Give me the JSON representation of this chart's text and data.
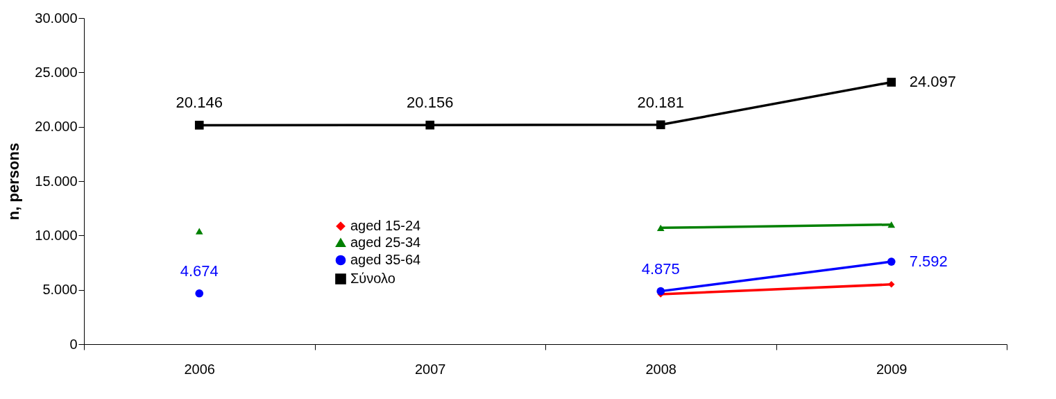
{
  "chart_data": {
    "type": "line",
    "ylabel": "n, persons",
    "categories": [
      "2006",
      "2007",
      "2008",
      "2009"
    ],
    "ylim": [
      0,
      30000
    ],
    "yticks": [
      {
        "value": 0,
        "label": "0"
      },
      {
        "value": 5000,
        "label": "5.000"
      },
      {
        "value": 10000,
        "label": "10.000"
      },
      {
        "value": 15000,
        "label": "15.000"
      },
      {
        "value": 20000,
        "label": "20.000"
      },
      {
        "value": 25000,
        "label": "25.000"
      },
      {
        "value": 30000,
        "label": "30.000"
      }
    ],
    "grid": false,
    "legend": "bottom",
    "series": [
      {
        "name": "aged 15-24",
        "color": "#ff0000",
        "marker": "diamond",
        "values": [
          null,
          null,
          4600,
          5500
        ]
      },
      {
        "name": "aged 25-34",
        "color": "#008000",
        "marker": "triangle",
        "values": [
          10400,
          null,
          10700,
          11000
        ]
      },
      {
        "name": "aged 35-64",
        "color": "#0000ff",
        "marker": "circle",
        "values": [
          4674,
          null,
          4875,
          7592
        ],
        "value_labels": [
          "4.674",
          null,
          "4.875",
          "7.592"
        ]
      },
      {
        "name": "Σύνολο",
        "color": "#000000",
        "marker": "square",
        "values": [
          20146,
          20156,
          20181,
          24097
        ],
        "value_labels": [
          "20.146",
          "20.156",
          "20.181",
          "24.097"
        ]
      }
    ]
  }
}
